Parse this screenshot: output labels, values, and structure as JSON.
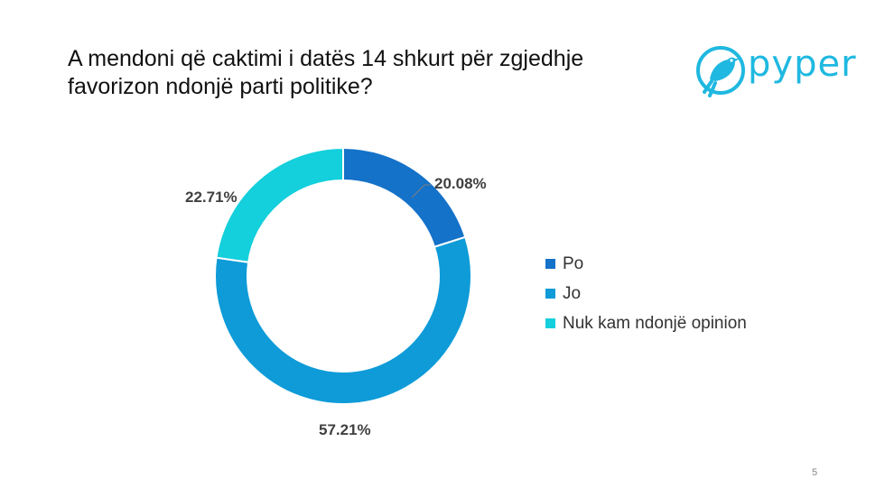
{
  "title": "A mendoni që caktimi i datës 14 shkurt për zgjedhje favorizon ndonjë parti politike?",
  "logo": {
    "text": "pyper",
    "icon": "bird-icon",
    "color": "#1fb8e0"
  },
  "page_number": "5",
  "chart_data": {
    "type": "pie",
    "donut": true,
    "categories": [
      "Po",
      "Jo",
      "Nuk kam ndonjë opinion"
    ],
    "values": [
      20.08,
      57.21,
      22.71
    ],
    "labels": [
      "20.08%",
      "57.21%",
      "22.71%"
    ],
    "colors": [
      "#1472c8",
      "#0e9bd8",
      "#14cfdc"
    ],
    "legend": "right"
  }
}
